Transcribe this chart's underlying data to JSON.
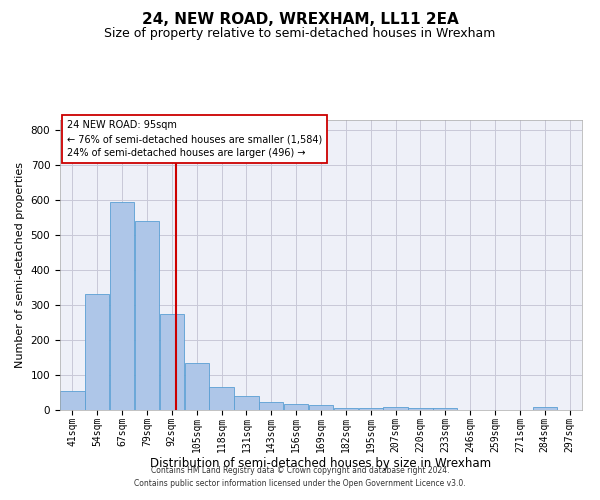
{
  "title": "24, NEW ROAD, WREXHAM, LL11 2EA",
  "subtitle": "Size of property relative to semi-detached houses in Wrexham",
  "xlabel": "Distribution of semi-detached houses by size in Wrexham",
  "ylabel": "Number of semi-detached properties",
  "footer_line1": "Contains HM Land Registry data © Crown copyright and database right 2024.",
  "footer_line2": "Contains public sector information licensed under the Open Government Licence v3.0.",
  "annotation_title": "24 NEW ROAD: 95sqm",
  "annotation_line1": "← 76% of semi-detached houses are smaller (1,584)",
  "annotation_line2": "24% of semi-detached houses are larger (496) →",
  "bar_labels": [
    "41sqm",
    "54sqm",
    "67sqm",
    "79sqm",
    "92sqm",
    "105sqm",
    "118sqm",
    "131sqm",
    "143sqm",
    "156sqm",
    "169sqm",
    "182sqm",
    "195sqm",
    "207sqm",
    "220sqm",
    "233sqm",
    "246sqm",
    "259sqm",
    "271sqm",
    "284sqm",
    "297sqm"
  ],
  "bar_values": [
    55,
    333,
    596,
    540,
    275,
    135,
    65,
    40,
    22,
    17,
    13,
    7,
    5,
    8,
    5,
    5,
    0,
    0,
    0,
    8,
    0
  ],
  "bar_edges": [
    34.5,
    47.5,
    60.5,
    73.5,
    86.5,
    99.5,
    112.5,
    125.5,
    138.5,
    151.5,
    164.5,
    177.5,
    190.5,
    203.5,
    216.5,
    229.5,
    242.5,
    255.5,
    268.5,
    281.5,
    294.5,
    307.5
  ],
  "bar_color": "#aec6e8",
  "bar_edgecolor": "#5a9fd4",
  "vline_x": 95,
  "vline_color": "#cc0000",
  "ylim": [
    0,
    830
  ],
  "yticks": [
    0,
    100,
    200,
    300,
    400,
    500,
    600,
    700,
    800
  ],
  "grid_color": "#c8c8d8",
  "bg_color": "#eef0f8",
  "title_fontsize": 11,
  "subtitle_fontsize": 9,
  "xlabel_fontsize": 8.5,
  "ylabel_fontsize": 8,
  "tick_fontsize": 7,
  "annotation_fontsize": 7,
  "footer_fontsize": 5.5,
  "annotation_box_color": "#ffffff",
  "annotation_box_edgecolor": "#cc0000"
}
